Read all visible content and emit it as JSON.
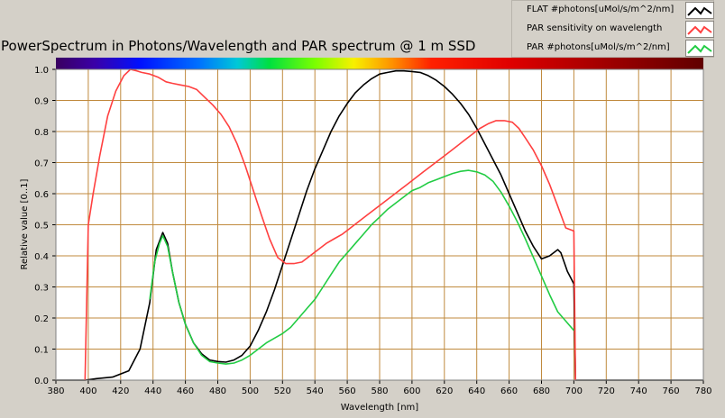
{
  "title": "PowerSpectrum in Photons/Wavelength and PAR spectrum @ 1 m SSD",
  "colors": {
    "plot_bg": "#ffffff",
    "grid": "#c08a3e",
    "flat": "#000000",
    "par_sensitivity": "#ff4040",
    "par_photons": "#22cc44",
    "panel": "#d4d0c8"
  },
  "legend": [
    {
      "label": "FLAT #photons[uMol/s/m^2/nm]",
      "color": "#000000"
    },
    {
      "label": "PAR sensitivity on wavelength",
      "color": "#ff4040"
    },
    {
      "label": "PAR #photons[uMol/s/m^2/nm]",
      "color": "#22cc44"
    }
  ],
  "chart_data": {
    "type": "line",
    "title": "PowerSpectrum in Photons/Wavelength and PAR spectrum @ 1 m SSD",
    "xlabel": "Wavelength [nm]",
    "ylabel": "Relative value [0..1]",
    "xlim": [
      380,
      780
    ],
    "ylim": [
      0,
      1
    ],
    "grid": true,
    "legend_position": "top-right",
    "xticks": [
      380,
      400,
      420,
      440,
      460,
      480,
      500,
      520,
      540,
      560,
      580,
      600,
      620,
      640,
      660,
      680,
      700,
      720,
      740,
      760,
      780
    ],
    "yticks": [
      0.0,
      0.1,
      0.2,
      0.3,
      0.4,
      0.5,
      0.6,
      0.7,
      0.8,
      0.9,
      1.0
    ],
    "series": [
      {
        "name": "FLAT #photons[uMol/s/m^2/nm]",
        "color": "#000000",
        "x": [
          380,
          398,
          405,
          415,
          425,
          432,
          438,
          442,
          446,
          449,
          452,
          456,
          460,
          465,
          470,
          475,
          480,
          485,
          490,
          495,
          500,
          505,
          510,
          515,
          520,
          525,
          530,
          535,
          540,
          545,
          550,
          555,
          560,
          565,
          570,
          575,
          580,
          585,
          590,
          595,
          600,
          605,
          610,
          615,
          620,
          625,
          630,
          635,
          640,
          645,
          650,
          655,
          660,
          665,
          670,
          675,
          680,
          685,
          690,
          692,
          694,
          696,
          698,
          700,
          701,
          705,
          720,
          740,
          760,
          780
        ],
        "y": [
          0,
          0,
          0.005,
          0.01,
          0.03,
          0.1,
          0.25,
          0.42,
          0.475,
          0.44,
          0.35,
          0.25,
          0.18,
          0.12,
          0.085,
          0.065,
          0.06,
          0.058,
          0.065,
          0.08,
          0.11,
          0.16,
          0.22,
          0.29,
          0.37,
          0.45,
          0.53,
          0.61,
          0.68,
          0.74,
          0.8,
          0.85,
          0.89,
          0.925,
          0.95,
          0.97,
          0.985,
          0.99,
          0.995,
          0.995,
          0.993,
          0.99,
          0.98,
          0.965,
          0.945,
          0.92,
          0.89,
          0.855,
          0.81,
          0.76,
          0.71,
          0.66,
          0.6,
          0.54,
          0.48,
          0.43,
          0.39,
          0.4,
          0.42,
          0.41,
          0.38,
          0.35,
          0.33,
          0.31,
          0,
          0,
          0,
          0,
          0,
          0
        ]
      },
      {
        "name": "PAR sensitivity on wavelength",
        "color": "#ff4040",
        "x": [
          398,
          399,
          400,
          403,
          407,
          412,
          417,
          422,
          426,
          430,
          433,
          438,
          443,
          448,
          452,
          457,
          462,
          467,
          472,
          477,
          482,
          487,
          492,
          497,
          502,
          507,
          512,
          517,
          522,
          527,
          532,
          537,
          542,
          547,
          552,
          557,
          562,
          567,
          572,
          577,
          582,
          587,
          592,
          597,
          602,
          607,
          612,
          617,
          622,
          627,
          632,
          637,
          642,
          647,
          652,
          657,
          662,
          666,
          670,
          675,
          680,
          685,
          690,
          695,
          700,
          701
        ],
        "y": [
          0,
          0.25,
          0.5,
          0.6,
          0.72,
          0.85,
          0.93,
          0.98,
          1.0,
          0.995,
          0.99,
          0.985,
          0.975,
          0.96,
          0.955,
          0.95,
          0.945,
          0.935,
          0.91,
          0.885,
          0.855,
          0.815,
          0.76,
          0.69,
          0.61,
          0.53,
          0.455,
          0.395,
          0.375,
          0.375,
          0.38,
          0.4,
          0.42,
          0.44,
          0.455,
          0.47,
          0.49,
          0.51,
          0.53,
          0.55,
          0.57,
          0.59,
          0.61,
          0.63,
          0.65,
          0.67,
          0.69,
          0.71,
          0.73,
          0.75,
          0.77,
          0.79,
          0.81,
          0.825,
          0.835,
          0.835,
          0.83,
          0.81,
          0.78,
          0.74,
          0.69,
          0.63,
          0.56,
          0.49,
          0.48,
          0
        ]
      },
      {
        "name": "PAR #photons[uMol/s/m^2/nm]",
        "color": "#22cc44",
        "x": [
          438,
          441,
          444,
          446,
          449,
          452,
          456,
          460,
          465,
          470,
          475,
          480,
          485,
          490,
          495,
          500,
          505,
          510,
          515,
          520,
          525,
          530,
          535,
          540,
          545,
          550,
          555,
          560,
          565,
          570,
          575,
          580,
          585,
          590,
          595,
          600,
          605,
          610,
          615,
          620,
          625,
          630,
          635,
          640,
          645,
          650,
          655,
          660,
          665,
          670,
          675,
          680,
          685,
          690,
          695,
          700
        ],
        "y": [
          0.26,
          0.38,
          0.44,
          0.465,
          0.43,
          0.35,
          0.25,
          0.18,
          0.12,
          0.08,
          0.06,
          0.055,
          0.052,
          0.055,
          0.065,
          0.08,
          0.1,
          0.12,
          0.135,
          0.15,
          0.17,
          0.2,
          0.23,
          0.26,
          0.3,
          0.34,
          0.38,
          0.41,
          0.44,
          0.47,
          0.5,
          0.525,
          0.55,
          0.57,
          0.59,
          0.61,
          0.62,
          0.635,
          0.645,
          0.655,
          0.665,
          0.672,
          0.675,
          0.67,
          0.66,
          0.64,
          0.605,
          0.56,
          0.51,
          0.455,
          0.395,
          0.335,
          0.275,
          0.22,
          0.19,
          0.16
        ]
      }
    ]
  }
}
